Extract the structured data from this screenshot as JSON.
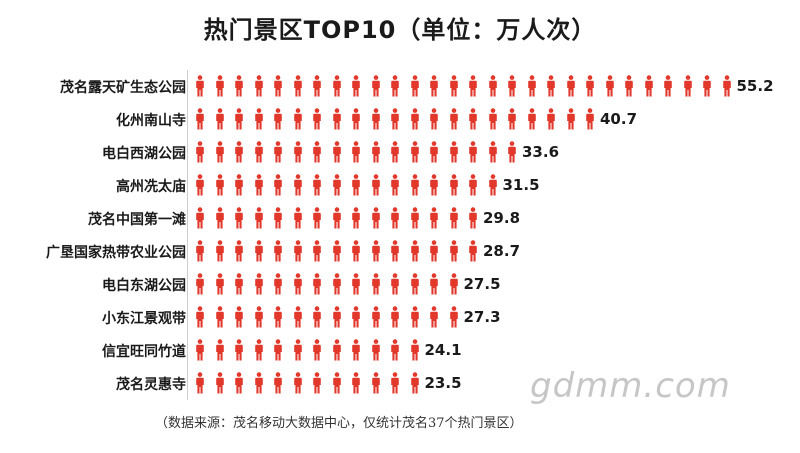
{
  "chart_data": {
    "type": "bar",
    "title": "热门景区TOP10（单位：万人次）",
    "categories": [
      "茂名露天矿生态公园",
      "化州南山寺",
      "电白西湖公园",
      "高州冼太庙",
      "茂名中国第一滩",
      "广垦国家热带农业公园",
      "电白东湖公园",
      "小东江景观带",
      "信宜旺同竹道",
      "茂名灵惠寺"
    ],
    "values": [
      55.2,
      40.7,
      33.6,
      31.5,
      29.8,
      28.7,
      27.5,
      27.3,
      24.1,
      23.5
    ],
    "value_labels": [
      "55.2",
      "40.7",
      "33.6",
      "31.5",
      "29.8",
      "28.7",
      "27.5",
      "27.3",
      "24.1",
      "23.5"
    ],
    "xlabel": "",
    "ylabel": "",
    "orientation": "horizontal",
    "mark": "person-icon",
    "mark_color": "#e2382c",
    "xlim": [
      0,
      55.2
    ]
  },
  "footer": {
    "source": "（数据来源：茂名移动大数据中心，仅统计茂名37个热门景区）",
    "watermark": "gdmm.com"
  }
}
